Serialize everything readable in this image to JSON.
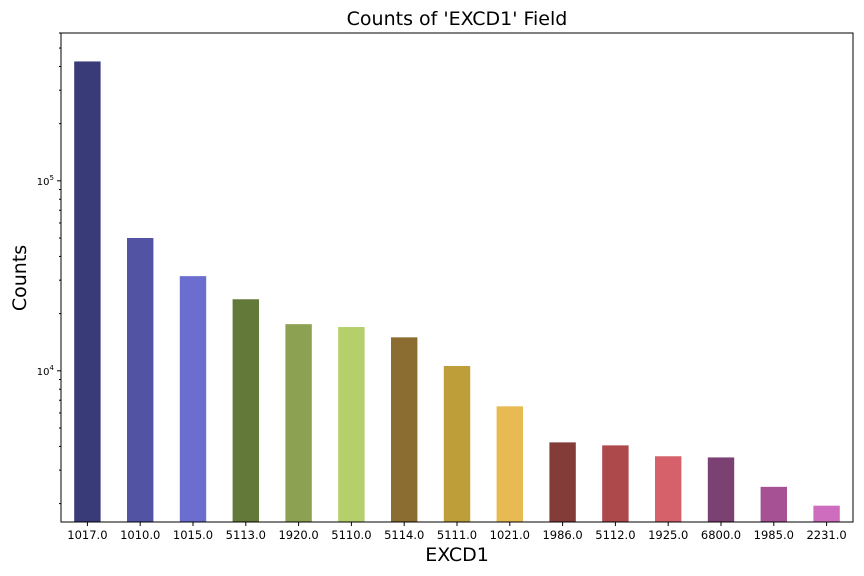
{
  "chart_data": {
    "type": "bar",
    "title": "Counts of 'EXCD1' Field",
    "xlabel": "EXCD1",
    "ylabel": "Counts",
    "yscale": "log",
    "ylim": [
      1600,
      600000
    ],
    "yticks": [
      {
        "value": 10000,
        "base": "10",
        "exp": "4"
      },
      {
        "value": 100000,
        "base": "10",
        "exp": "5"
      }
    ],
    "grid": false,
    "categories": [
      "1017.0",
      "1010.0",
      "1015.0",
      "5113.0",
      "1920.0",
      "5110.0",
      "5114.0",
      "5111.0",
      "1021.0",
      "1986.0",
      "5112.0",
      "1925.0",
      "6800.0",
      "1985.0",
      "2231.0"
    ],
    "values": [
      425000,
      50000,
      31500,
      23800,
      17600,
      17000,
      15000,
      10600,
      6500,
      4200,
      4050,
      3550,
      3500,
      2450,
      1950
    ],
    "colors": [
      "#393b79",
      "#5254a3",
      "#6b6ecf",
      "#637939",
      "#8ca252",
      "#b5cf6b",
      "#8c6d31",
      "#bd9e39",
      "#e7ba52",
      "#843c39",
      "#ad494a",
      "#d6616b",
      "#7b4173",
      "#a55194",
      "#ce6dbd"
    ]
  }
}
